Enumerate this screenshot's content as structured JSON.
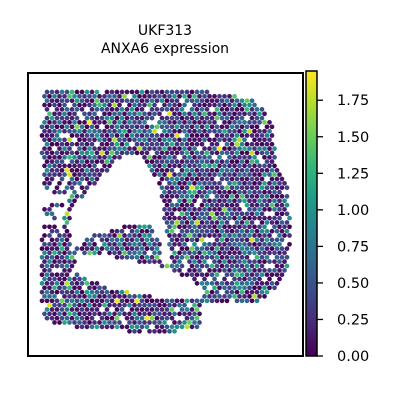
{
  "chart_data": {
    "type": "scatter",
    "title_lines": [
      "UKF313",
      "ANXA6 expression"
    ],
    "xlabel": "",
    "ylabel": "",
    "colorbar": {
      "colormap": "viridis",
      "range": [
        0.0,
        1.95
      ],
      "ticks": [
        0.0,
        0.25,
        0.5,
        0.75,
        1.0,
        1.25,
        1.5,
        1.75
      ],
      "tick_labels": [
        "0.00",
        "0.25",
        "0.50",
        "0.75",
        "1.00",
        "1.25",
        "1.50",
        "1.75"
      ]
    },
    "grid": false,
    "legend": "none",
    "spot_value_distribution": "mostly 0.00–0.75 (dark purple / blue), sparse high spots up to ~1.9 (yellow-green)"
  },
  "colors": {
    "viridis_stops": [
      "#440154",
      "#482878",
      "#3e4989",
      "#31688e",
      "#26828e",
      "#1f9e89",
      "#35b779",
      "#6ece58",
      "#b5de2b",
      "#fde725"
    ],
    "frame": "#000000",
    "background": "#ffffff"
  }
}
